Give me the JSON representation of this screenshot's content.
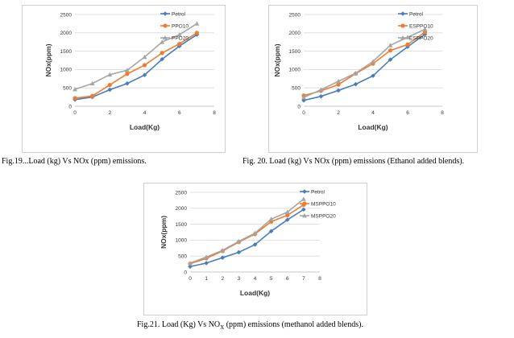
{
  "chart_data": [
    {
      "type": "line",
      "caption": "Fig.19...Load (kg) Vs NOx (ppm) emissions.",
      "xlabel": "Load(Kg)",
      "ylabel": "NOx(ppm)",
      "xlim": [
        0,
        8
      ],
      "ylim": [
        0,
        2500
      ],
      "xticks": [
        "0",
        "2",
        "4",
        "6",
        "8"
      ],
      "yticks": [
        "0",
        "500",
        "1000",
        "1500",
        "2000",
        "2500"
      ],
      "grid": "horizontal",
      "legend": "top-right",
      "x": [
        0,
        1,
        2,
        3,
        4,
        5,
        6,
        7
      ],
      "series": [
        {
          "name": "Petrol",
          "color": "#4a7ebb",
          "marker": "diamond",
          "values": [
            180,
            250,
            450,
            620,
            850,
            1280,
            1640,
            1950
          ]
        },
        {
          "name": "PPO10",
          "color": "#ed7d31",
          "marker": "circle",
          "values": [
            220,
            280,
            580,
            880,
            1120,
            1450,
            1700,
            2000
          ]
        },
        {
          "name": "PPO20",
          "color": "#a5a5a5",
          "marker": "triangle",
          "values": [
            460,
            620,
            860,
            980,
            1340,
            1750,
            1950,
            2250
          ]
        }
      ]
    },
    {
      "type": "line",
      "caption": "Fig. 20. Load (kg) Vs NOx (ppm) emissions (Ethanol added blends).",
      "xlabel": "Load(Kg)",
      "ylabel": "NOx(ppm)",
      "xlim": [
        0,
        8
      ],
      "ylim": [
        0,
        2500
      ],
      "xticks": [
        "0",
        "2",
        "4",
        "6",
        "8"
      ],
      "yticks": [
        "0",
        "500",
        "1000",
        "1500",
        "2000",
        "2500"
      ],
      "grid": "horizontal",
      "legend": "top-right",
      "x": [
        0,
        1,
        2,
        3,
        4,
        5,
        6,
        7
      ],
      "series": [
        {
          "name": "Petrol",
          "color": "#4a7ebb",
          "marker": "diamond",
          "values": [
            160,
            270,
            430,
            600,
            830,
            1270,
            1620,
            1960
          ]
        },
        {
          "name": "ESPPO10",
          "color": "#ed7d31",
          "marker": "circle",
          "values": [
            290,
            420,
            590,
            890,
            1160,
            1520,
            1680,
            2020
          ]
        },
        {
          "name": "ESPPO20",
          "color": "#a5a5a5",
          "marker": "triangle",
          "values": [
            240,
            450,
            680,
            900,
            1220,
            1660,
            1880,
            2100
          ]
        }
      ]
    },
    {
      "type": "line",
      "caption": "Fig.21. Load (Kg) Vs NO",
      "caption_sub": "X",
      "caption_tail": " (ppm) emissions (methanol added blends).",
      "xlabel": "Load(Kg)",
      "ylabel": "NOx(ppm)",
      "xlim": [
        0,
        8
      ],
      "ylim": [
        0,
        2500
      ],
      "xticks": [
        "0",
        "1",
        "2",
        "3",
        "4",
        "5",
        "6",
        "7",
        "8"
      ],
      "yticks": [
        "0",
        "500",
        "1000",
        "1500",
        "2000",
        "2500"
      ],
      "grid": "horizontal",
      "legend": "top-right",
      "x": [
        0,
        1,
        2,
        3,
        4,
        5,
        6,
        7
      ],
      "series": [
        {
          "name": "Petrol",
          "color": "#4a7ebb",
          "marker": "diamond",
          "values": [
            170,
            280,
            450,
            620,
            860,
            1280,
            1640,
            1960
          ]
        },
        {
          "name": "MSPPO10",
          "color": "#ed7d31",
          "marker": "circle",
          "values": [
            260,
            430,
            660,
            940,
            1190,
            1580,
            1780,
            2110
          ]
        },
        {
          "name": "MSPPO20",
          "color": "#a5a5a5",
          "marker": "triangle",
          "values": [
            280,
            470,
            680,
            960,
            1220,
            1660,
            1880,
            2290
          ]
        }
      ]
    }
  ]
}
